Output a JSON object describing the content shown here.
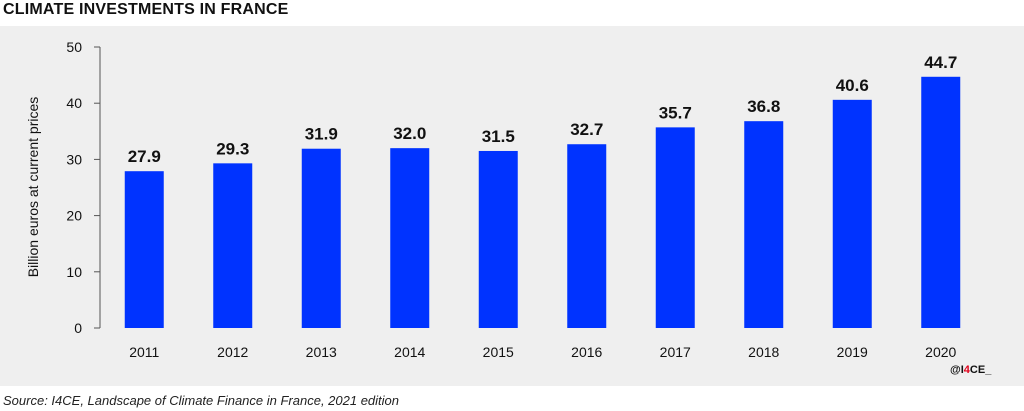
{
  "title": "CLIMATE INVESTMENTS IN FRANCE",
  "source": "Source: I4CE, Landscape of Climate Finance in France, 2021 edition",
  "brand": {
    "prefix": "@I",
    "accent": "4",
    "suffix": "CE_"
  },
  "colors": {
    "bar": "#0033ff",
    "panel": "#efefef",
    "brand_accent": "#e2001a"
  },
  "chart_data": {
    "type": "bar",
    "title": "CLIMATE INVESTMENTS IN FRANCE",
    "xlabel": "",
    "ylabel": "Billion euros at current prices",
    "categories": [
      "2011",
      "2012",
      "2013",
      "2014",
      "2015",
      "2016",
      "2017",
      "2018",
      "2019",
      "2020"
    ],
    "values": [
      27.9,
      29.3,
      31.9,
      32.0,
      31.5,
      32.7,
      35.7,
      36.8,
      40.6,
      44.7
    ],
    "value_labels": [
      "27.9",
      "29.3",
      "31.9",
      "32.0",
      "31.5",
      "32.7",
      "35.7",
      "36.8",
      "40.6",
      "44.7"
    ],
    "yticks": [
      "0",
      "10",
      "20",
      "30",
      "40",
      "50"
    ],
    "ylim": [
      0,
      50
    ],
    "grid": false,
    "legend": "none"
  }
}
